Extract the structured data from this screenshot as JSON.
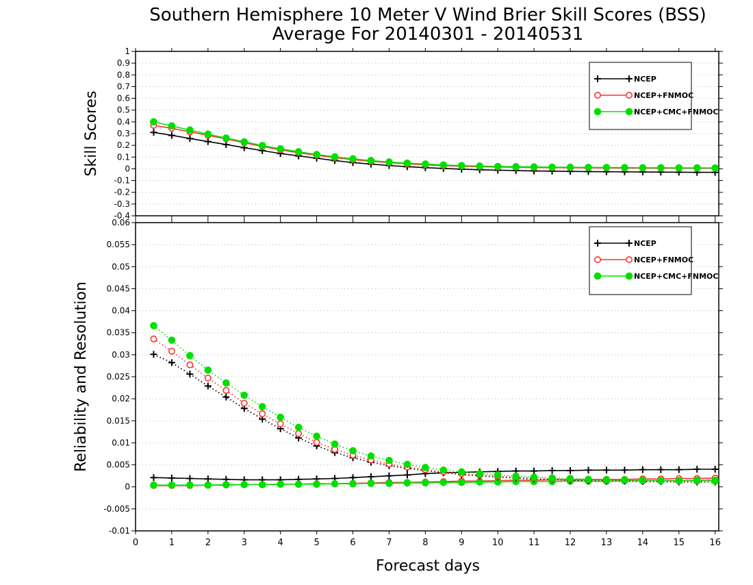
{
  "title_line1": "Southern Hemisphere 10 Meter V Wind Brier Skill Scores (BSS)",
  "title_line2": "Average For 20140301 - 20140531",
  "xlabel": "Forecast days",
  "chart_data": [
    {
      "type": "line",
      "ylabel": "Skill Scores",
      "xlim": [
        0,
        16.1
      ],
      "ylim": [
        -0.4,
        1
      ],
      "yticks": [
        "1",
        "0.9",
        "0.8",
        "0.7",
        "0.6",
        "0.5",
        "0.4",
        "0.3",
        "0.2",
        "0.1",
        "0",
        "-0.1",
        "-0.2",
        "-0.3",
        "-0.4"
      ],
      "xticks": [
        "0",
        "1",
        "2",
        "3",
        "4",
        "5",
        "6",
        "7",
        "8",
        "9",
        "10",
        "11",
        "12",
        "13",
        "14",
        "15",
        "16"
      ],
      "grid": true,
      "legend_position": "top-right",
      "x": [
        0.5,
        1,
        1.5,
        2,
        2.5,
        3,
        3.5,
        4,
        4.5,
        5,
        5.5,
        6,
        6.5,
        7,
        7.5,
        8,
        8.5,
        9,
        9.5,
        10,
        10.5,
        11,
        11.5,
        12,
        12.5,
        13,
        13.5,
        14,
        14.5,
        15,
        15.5,
        16
      ],
      "series": [
        {
          "name": "NCEP",
          "color": "#000000",
          "marker": "plus",
          "line": "solid",
          "values": [
            0.31,
            0.285,
            0.258,
            0.232,
            0.207,
            0.18,
            0.155,
            0.13,
            0.11,
            0.09,
            0.07,
            0.053,
            0.04,
            0.028,
            0.018,
            0.01,
            0.003,
            -0.003,
            -0.008,
            -0.012,
            -0.015,
            -0.018,
            -0.02,
            -0.022,
            -0.024,
            -0.025,
            -0.026,
            -0.027,
            -0.028,
            -0.029,
            -0.03,
            -0.03
          ]
        },
        {
          "name": "NCEP+FNMOC",
          "color": "#ff3030",
          "marker": "open-circle",
          "line": "solid",
          "values": [
            0.37,
            0.345,
            0.315,
            0.285,
            0.255,
            0.222,
            0.19,
            0.162,
            0.137,
            0.115,
            0.095,
            0.078,
            0.064,
            0.052,
            0.042,
            0.034,
            0.027,
            0.022,
            0.018,
            0.015,
            0.013,
            0.011,
            0.01,
            0.009,
            0.008,
            0.007,
            0.006,
            0.006,
            0.005,
            0.005,
            0.004,
            0.004
          ]
        },
        {
          "name": "NCEP+CMC+FNMOC",
          "color": "#00e000",
          "marker": "filled-circle",
          "line": "solid",
          "values": [
            0.4,
            0.365,
            0.33,
            0.295,
            0.262,
            0.23,
            0.198,
            0.17,
            0.145,
            0.122,
            0.102,
            0.085,
            0.07,
            0.058,
            0.048,
            0.04,
            0.033,
            0.027,
            0.023,
            0.02,
            0.018,
            0.016,
            0.014,
            0.013,
            0.012,
            0.011,
            0.01,
            0.009,
            0.009,
            0.008,
            0.008,
            0.007
          ]
        }
      ]
    },
    {
      "type": "line",
      "ylabel": "Reliability and Resolution",
      "xlim": [
        0,
        16.1
      ],
      "ylim": [
        -0.01,
        0.06
      ],
      "yticks": [
        "0.06",
        "0.055",
        "0.05",
        "0.045",
        "0.04",
        "0.035",
        "0.03",
        "0.025",
        "0.02",
        "0.015",
        "0.01",
        "0.005",
        "0",
        "-0.005",
        "-0.01"
      ],
      "xticks": [
        "0",
        "1",
        "2",
        "3",
        "4",
        "5",
        "6",
        "7",
        "8",
        "9",
        "10",
        "11",
        "12",
        "13",
        "14",
        "15",
        "16"
      ],
      "grid": true,
      "legend_position": "top-right",
      "x": [
        0.5,
        1,
        1.5,
        2,
        2.5,
        3,
        3.5,
        4,
        4.5,
        5,
        5.5,
        6,
        6.5,
        7,
        7.5,
        8,
        8.5,
        9,
        9.5,
        10,
        10.5,
        11,
        11.5,
        12,
        12.5,
        13,
        13.5,
        14,
        14.5,
        15,
        15.5,
        16
      ],
      "series": [
        {
          "name": "NCEP",
          "color": "#000000",
          "marker": "plus",
          "line": "solid",
          "role": "reliability",
          "values": [
            0.0021,
            0.002,
            0.0019,
            0.0018,
            0.0017,
            0.0016,
            0.0016,
            0.0016,
            0.0017,
            0.0018,
            0.0019,
            0.0021,
            0.0023,
            0.0025,
            0.0027,
            0.003,
            0.0032,
            0.0033,
            0.0034,
            0.0035,
            0.0036,
            0.0036,
            0.0037,
            0.0037,
            0.0038,
            0.0038,
            0.0038,
            0.0039,
            0.0039,
            0.0039,
            0.004,
            0.004
          ]
        },
        {
          "name": "NCEP+FNMOC",
          "color": "#ff3030",
          "marker": "open-circle",
          "line": "solid",
          "role": "reliability",
          "values": [
            0.0003,
            0.0003,
            0.0003,
            0.0004,
            0.0004,
            0.0005,
            0.0005,
            0.0006,
            0.0006,
            0.0007,
            0.0007,
            0.0008,
            0.0009,
            0.001,
            0.001,
            0.0011,
            0.0012,
            0.0013,
            0.0013,
            0.0014,
            0.0015,
            0.0015,
            0.0016,
            0.0016,
            0.0017,
            0.0017,
            0.0017,
            0.0018,
            0.0018,
            0.0019,
            0.0019,
            0.002
          ]
        },
        {
          "name": "NCEP+CMC+FNMOC",
          "color": "#00e000",
          "marker": "filled-circle",
          "line": "solid",
          "role": "reliability",
          "values": [
            0.0004,
            0.0004,
            0.0004,
            0.0004,
            0.0005,
            0.0005,
            0.0005,
            0.0006,
            0.0006,
            0.0006,
            0.0007,
            0.0007,
            0.0008,
            0.0008,
            0.0009,
            0.0009,
            0.001,
            0.001,
            0.0011,
            0.0011,
            0.0012,
            0.0012,
            0.0012,
            0.0013,
            0.0013,
            0.0013,
            0.0014,
            0.0014,
            0.0014,
            0.0014,
            0.0015,
            0.0015
          ]
        },
        {
          "name": "NCEP",
          "color": "#000000",
          "marker": "plus",
          "line": "dotted",
          "role": "resolution",
          "values": [
            0.0301,
            0.0282,
            0.0256,
            0.0229,
            0.0204,
            0.0178,
            0.0154,
            0.0132,
            0.0111,
            0.0093,
            0.0078,
            0.0066,
            0.0056,
            0.0048,
            0.0042,
            0.0037,
            0.0032,
            0.0028,
            0.0025,
            0.0022,
            0.002,
            0.0018,
            0.0017,
            0.0015,
            0.0014,
            0.0013,
            0.0013,
            0.0012,
            0.0012,
            0.0011,
            0.0011,
            0.0011
          ]
        },
        {
          "name": "NCEP+FNMOC",
          "color": "#ff3030",
          "marker": "open-circle",
          "line": "dotted",
          "role": "resolution",
          "values": [
            0.0336,
            0.0308,
            0.0277,
            0.0247,
            0.0219,
            0.019,
            0.0166,
            0.0143,
            0.0121,
            0.0101,
            0.0085,
            0.0072,
            0.0061,
            0.0052,
            0.0045,
            0.0039,
            0.0034,
            0.003,
            0.0027,
            0.0024,
            0.0022,
            0.002,
            0.0018,
            0.0017,
            0.0016,
            0.0015,
            0.0015,
            0.0014,
            0.0014,
            0.0013,
            0.0013,
            0.0013
          ]
        },
        {
          "name": "NCEP+CMC+FNMOC",
          "color": "#00e000",
          "marker": "filled-circle",
          "line": "dotted",
          "role": "resolution",
          "values": [
            0.0366,
            0.0333,
            0.0298,
            0.0265,
            0.0236,
            0.0208,
            0.0182,
            0.0158,
            0.0135,
            0.0115,
            0.0097,
            0.0082,
            0.007,
            0.006,
            0.0051,
            0.0044,
            0.0038,
            0.0034,
            0.003,
            0.0027,
            0.0024,
            0.0022,
            0.002,
            0.0019,
            0.0017,
            0.0016,
            0.0016,
            0.0015,
            0.0014,
            0.0014,
            0.0014,
            0.0013
          ]
        }
      ]
    }
  ]
}
